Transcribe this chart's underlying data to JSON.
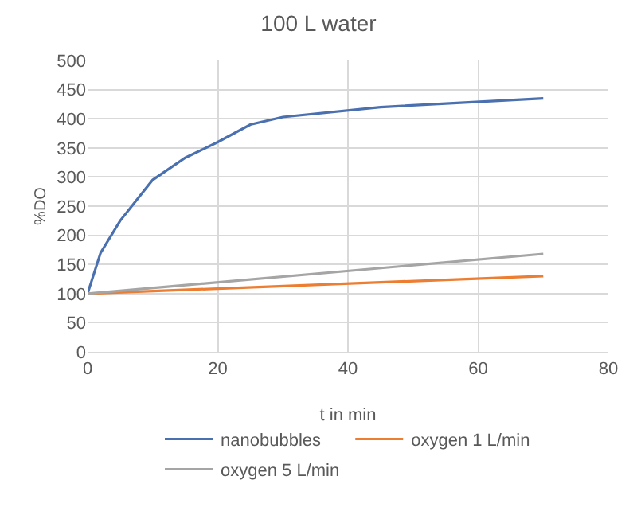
{
  "chart_data": {
    "type": "line",
    "title": "100 L water",
    "xlabel": "t in min",
    "ylabel": "%DO",
    "xlim": [
      0,
      80
    ],
    "xticks": [
      0,
      20,
      40,
      60,
      80
    ],
    "ylim": [
      0,
      500
    ],
    "yticks": [
      0,
      50,
      100,
      150,
      200,
      250,
      300,
      350,
      400,
      450,
      500
    ],
    "grid": true,
    "legend": "bottom",
    "marker": "none",
    "line_style": "solid",
    "series": [
      {
        "name": "nanobubbles",
        "color": "#4a70b0",
        "x": [
          0,
          2,
          5,
          10,
          15,
          20,
          25,
          30,
          45,
          70
        ],
        "values": [
          100,
          170,
          225,
          295,
          333,
          360,
          390,
          403,
          420,
          435
        ]
      },
      {
        "name": "oxygen 1 L/min",
        "color": "#ed7d31",
        "x": [
          0,
          70
        ],
        "values": [
          100,
          130
        ]
      },
      {
        "name": "oxygen 5 L/min",
        "color": "#a5a5a5",
        "x": [
          0,
          70
        ],
        "values": [
          100,
          168
        ]
      }
    ]
  }
}
